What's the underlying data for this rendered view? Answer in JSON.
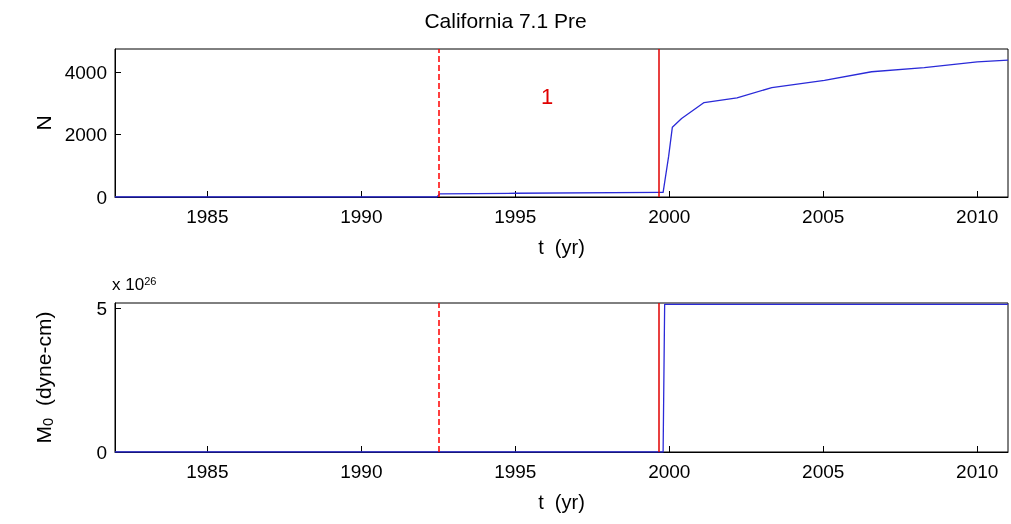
{
  "chart_data": [
    {
      "type": "line",
      "title": "California 7.1 Pre",
      "xlabel": "t  (yr)",
      "ylabel": "N",
      "x": [
        1982,
        1986,
        1990,
        1992.45,
        1992.55,
        1995,
        1999.7,
        1999.8,
        1999.98,
        2000.1,
        2000.4,
        2001.13,
        2002.2,
        2003.33,
        2005.04,
        2006.57,
        2008.28,
        2010.0,
        2011.0
      ],
      "series": [
        {
          "color": "#2a2ad8",
          "values": [
            0,
            0,
            0,
            0,
            100,
            120,
            150,
            150,
            1310,
            2240,
            2520,
            3030,
            3180,
            3510,
            3740,
            4020,
            4150,
            4340,
            4390
          ]
        }
      ],
      "xlim": [
        1982,
        2011
      ],
      "xticks": [
        1985,
        1990,
        1995,
        2000,
        2005,
        2010
      ],
      "ylim": [
        0,
        4750
      ],
      "yticks": [
        0,
        2000,
        4000
      ],
      "ref_lines": [
        {
          "axis": "x",
          "value": 1992.5,
          "color": "#ff0000",
          "line_style": "dashed"
        },
        {
          "axis": "x",
          "value": 1999.67,
          "color": "#e00000",
          "line_style": "solid"
        }
      ],
      "annotations": [
        "1"
      ],
      "marker": "none",
      "grid": false
    },
    {
      "type": "line",
      "xlabel": "t  (yr)",
      "ylabel": "M$_{0}$  (dyne-cm)",
      "x": [
        1982,
        1999.8,
        1999.85,
        2011
      ],
      "series": [
        {
          "color": "#2a2ad8",
          "values": [
            0,
            0,
            5.15,
            5.15
          ]
        }
      ],
      "xlim": [
        1982,
        2011
      ],
      "xticks": [
        1985,
        1990,
        1995,
        2000,
        2005,
        2010
      ],
      "ylim": [
        0,
        5.2
      ],
      "yticks": [
        0,
        5
      ],
      "ref_lines": [
        {
          "axis": "x",
          "value": 1992.5,
          "color": "#ff0000",
          "line_style": "dashed"
        },
        {
          "axis": "x",
          "value": 1999.67,
          "color": "#e00000",
          "line_style": "solid"
        }
      ],
      "annotations": [
        "x 10$^{26}$"
      ],
      "marker": "none",
      "grid": false
    }
  ]
}
